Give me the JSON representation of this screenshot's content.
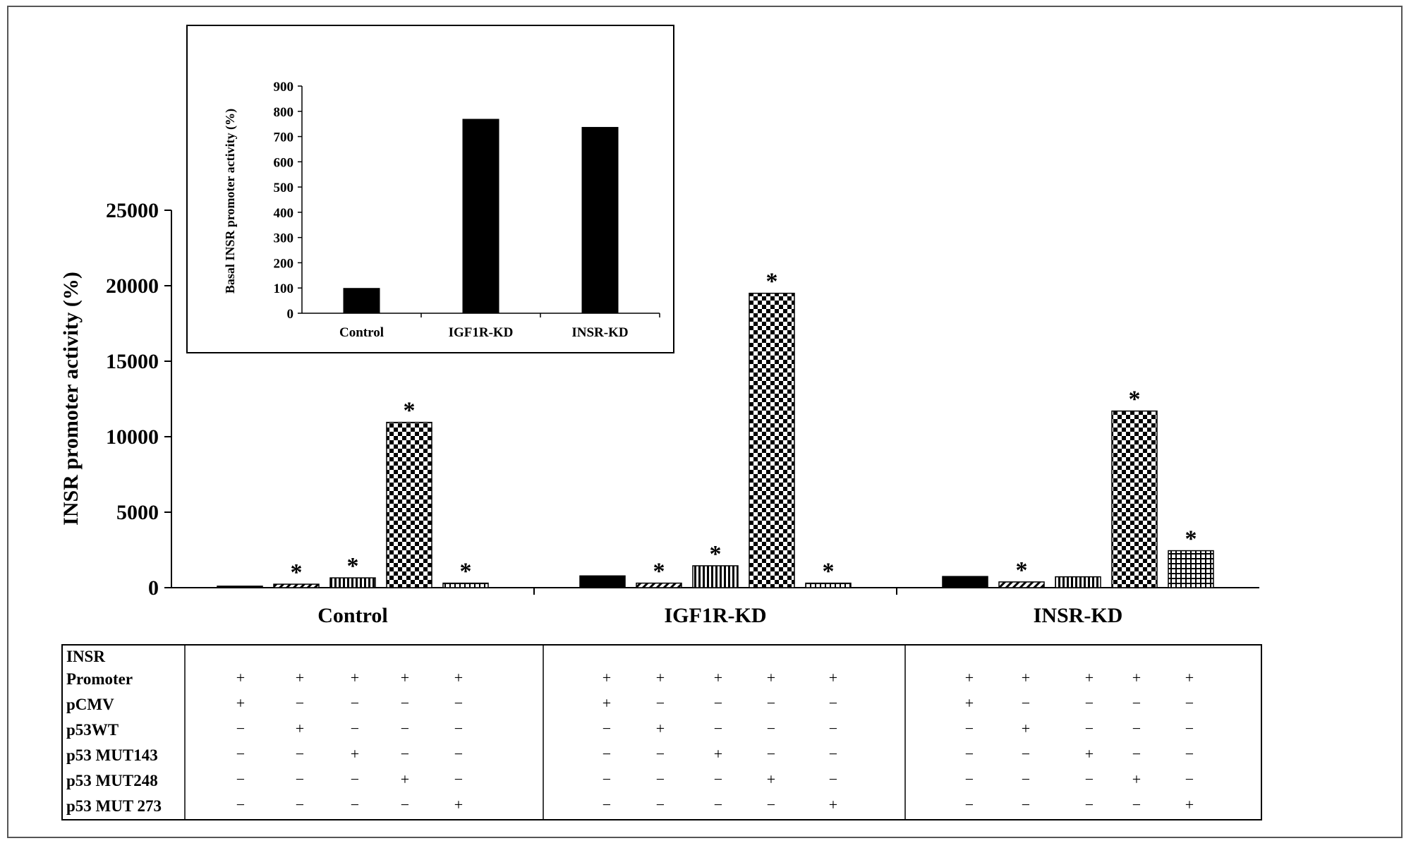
{
  "chart_data": [
    {
      "type": "bar",
      "ylabel": "INSR promoter activity  (%)",
      "ylim": [
        0,
        25000
      ],
      "yticks": [
        0,
        5000,
        10000,
        15000,
        20000,
        25000
      ],
      "categories": [
        "Control",
        "IGF1R-KD",
        "INSR-KD"
      ],
      "series": [
        {
          "pattern": "solid",
          "values": [
            100,
            780,
            740
          ],
          "significant": [
            false,
            false,
            false
          ]
        },
        {
          "pattern": "diagonal",
          "values": [
            230,
            300,
            380
          ],
          "significant": [
            true,
            true,
            true
          ]
        },
        {
          "pattern": "vertical",
          "values": [
            650,
            1450,
            720
          ],
          "significant": [
            true,
            true,
            false
          ]
        },
        {
          "pattern": "checkerboard",
          "values": [
            10950,
            19500,
            11700
          ],
          "significant": [
            true,
            true,
            true
          ]
        },
        {
          "pattern": "grid",
          "values": [
            300,
            300,
            2450
          ],
          "significant": [
            true,
            true,
            true
          ]
        }
      ],
      "significance_marker": "*"
    },
    {
      "type": "bar",
      "ylabel": "Basal INSR promoter activity (%)",
      "ylim": [
        0,
        900
      ],
      "yticks": [
        0,
        100,
        200,
        300,
        400,
        500,
        600,
        700,
        800,
        900
      ],
      "categories": [
        "Control",
        "IGF1R-KD",
        "INSR-KD"
      ],
      "values": [
        100,
        770,
        738
      ]
    }
  ],
  "table": {
    "rows": [
      {
        "label": "INSR\nPromoter",
        "signs": [
          "+",
          "+",
          "+",
          "+",
          "+"
        ]
      },
      {
        "label": "pCMV",
        "signs": [
          "+",
          "−",
          "−",
          "−",
          "−"
        ]
      },
      {
        "label": "p53WT",
        "signs": [
          "−",
          "+",
          "−",
          "−",
          "−"
        ]
      },
      {
        "label": "p53 MUT143",
        "signs": [
          "−",
          "−",
          "+",
          "−",
          "−"
        ]
      },
      {
        "label": "p53 MUT248",
        "signs": [
          "−",
          "−",
          "−",
          "+",
          "−"
        ]
      },
      {
        "label": "p53 MUT 273",
        "signs": [
          "−",
          "−",
          "−",
          "−",
          "+"
        ]
      }
    ]
  }
}
